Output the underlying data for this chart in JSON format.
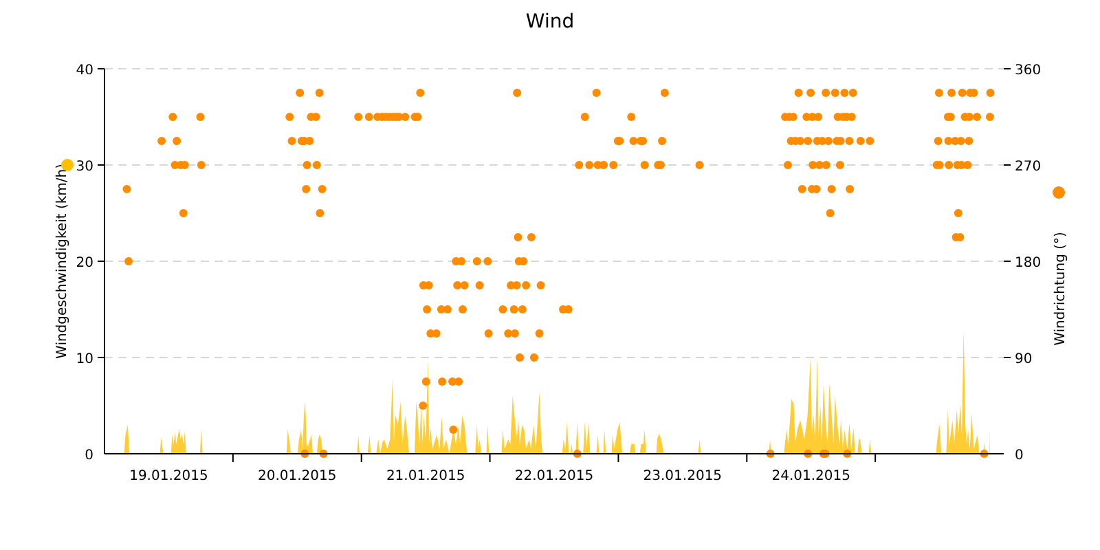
{
  "chart_data": {
    "type": "area",
    "title": "Wind",
    "ylabel": "Windgeschwindigkeit (km/h)",
    "y2label": "Windrichtung (°)",
    "xlim": [
      "2015-01-19T00:00",
      "2015-01-26T00:00"
    ],
    "xticks": [
      {
        "value": "2015-01-19T12:00",
        "label": "19.01.2015"
      },
      {
        "value": "2015-01-20T00:00",
        "label": null
      },
      {
        "value": "2015-01-20T12:00",
        "label": "20.01.2015"
      },
      {
        "value": "2015-01-21T00:00",
        "label": null
      },
      {
        "value": "2015-01-21T12:00",
        "label": "21.01.2015"
      },
      {
        "value": "2015-01-22T00:00",
        "label": null
      },
      {
        "value": "2015-01-22T12:00",
        "label": "22.01.2015"
      },
      {
        "value": "2015-01-23T00:00",
        "label": null
      },
      {
        "value": "2015-01-23T12:00",
        "label": "23.01.2015"
      },
      {
        "value": "2015-01-24T00:00",
        "label": null
      },
      {
        "value": "2015-01-24T12:00",
        "label": "24.01.2015"
      },
      {
        "value": "2015-01-25T00:00",
        "label": null
      }
    ],
    "ylim": [
      0,
      40
    ],
    "yticks": [
      0,
      10,
      20,
      30,
      40
    ],
    "y2lim": [
      0,
      360
    ],
    "y2ticks": [
      0,
      90,
      180,
      270,
      360
    ],
    "grid": "y",
    "series": [
      {
        "color": "#ffc000",
        "x": [
          "2015-01-19T03:40",
          "2015-01-19T03:55",
          "2015-01-19T04:20",
          "2015-01-19T04:40",
          "2015-01-19T10:20",
          "2015-01-19T10:35",
          "2015-01-19T11:00",
          "2015-01-19T12:25",
          "2015-01-19T12:40",
          "2015-01-19T12:55",
          "2015-01-19T13:10",
          "2015-01-19T13:25",
          "2015-01-19T13:45",
          "2015-01-19T14:00",
          "2015-01-19T14:15",
          "2015-01-19T14:30",
          "2015-01-19T14:45",
          "2015-01-19T15:00",
          "2015-01-19T15:15",
          "2015-01-19T17:50",
          "2015-01-19T18:05",
          "2015-01-19T18:20",
          "2015-01-20T10:00",
          "2015-01-20T10:15",
          "2015-01-20T10:30",
          "2015-01-20T10:50",
          "2015-01-20T12:05",
          "2015-01-20T12:20",
          "2015-01-20T12:45",
          "2015-01-20T13:00",
          "2015-01-20T13:15",
          "2015-01-20T13:30",
          "2015-01-20T13:45",
          "2015-01-20T14:00",
          "2015-01-20T14:25",
          "2015-01-20T14:40",
          "2015-01-20T14:55",
          "2015-01-20T15:40",
          "2015-01-20T15:55",
          "2015-01-20T16:10",
          "2015-01-20T16:30",
          "2015-01-20T16:45",
          "2015-01-20T23:10",
          "2015-01-20T23:25",
          "2015-01-20T23:40",
          "2015-01-21T01:10",
          "2015-01-21T01:30",
          "2015-01-21T01:45",
          "2015-01-21T02:45",
          "2015-01-21T03:10",
          "2015-01-21T03:30",
          "2015-01-21T03:55",
          "2015-01-21T04:15",
          "2015-01-21T04:50",
          "2015-01-21T05:20",
          "2015-01-21T05:50",
          "2015-01-21T06:05",
          "2015-01-21T06:20",
          "2015-01-21T06:50",
          "2015-01-21T07:20",
          "2015-01-21T07:40",
          "2015-01-21T08:10",
          "2015-01-21T08:35",
          "2015-01-21T08:55",
          "2015-01-21T09:55",
          "2015-01-21T10:15",
          "2015-01-21T10:30",
          "2015-01-21T10:50",
          "2015-01-21T11:10",
          "2015-01-21T11:25",
          "2015-01-21T11:40",
          "2015-01-21T12:00",
          "2015-01-21T12:15",
          "2015-01-21T12:25",
          "2015-01-21T12:40",
          "2015-01-21T12:50",
          "2015-01-21T13:15",
          "2015-01-21T14:05",
          "2015-01-21T14:35",
          "2015-01-21T15:00",
          "2015-01-21T15:20",
          "2015-01-21T15:50",
          "2015-01-21T16:25",
          "2015-01-21T17:10",
          "2015-01-21T17:40",
          "2015-01-21T18:10",
          "2015-01-21T18:25",
          "2015-01-21T18:50",
          "2015-01-21T19:15",
          "2015-01-21T19:45",
          "2015-01-21T21:15",
          "2015-01-21T21:35",
          "2015-01-21T21:50",
          "2015-01-21T22:05",
          "2015-01-21T22:25",
          "2015-01-21T23:20",
          "2015-01-21T23:35",
          "2015-01-21T23:50",
          "2015-01-22T02:10",
          "2015-01-22T02:25",
          "2015-01-22T02:45",
          "2015-01-22T03:25",
          "2015-01-22T03:50",
          "2015-01-22T04:15",
          "2015-01-22T04:45",
          "2015-01-22T05:00",
          "2015-01-22T05:20",
          "2015-01-22T05:35",
          "2015-01-22T06:00",
          "2015-01-22T06:25",
          "2015-01-22T06:45",
          "2015-01-22T07:20",
          "2015-01-22T07:40",
          "2015-01-22T08:10",
          "2015-01-22T08:35",
          "2015-01-22T09:15",
          "2015-01-22T09:35",
          "2015-01-22T09:50",
          "2015-01-22T13:30",
          "2015-01-22T13:45",
          "2015-01-22T14:05",
          "2015-01-22T14:25",
          "2015-01-22T14:45",
          "2015-01-22T15:00",
          "2015-01-22T15:15",
          "2015-01-22T15:30",
          "2015-01-22T16:00",
          "2015-01-22T16:20",
          "2015-01-22T16:35",
          "2015-01-22T17:25",
          "2015-01-22T17:45",
          "2015-01-22T18:05",
          "2015-01-22T18:25",
          "2015-01-22T18:45",
          "2015-01-22T19:55",
          "2015-01-22T20:10",
          "2015-01-22T20:25",
          "2015-01-22T21:10",
          "2015-01-22T21:25",
          "2015-01-22T21:40",
          "2015-01-22T22:45",
          "2015-01-22T22:55",
          "2015-01-22T23:15",
          "2015-01-22T23:50",
          "2015-01-23T00:15",
          "2015-01-23T00:35",
          "2015-01-23T00:45",
          "2015-01-23T02:05",
          "2015-01-23T02:25",
          "2015-01-23T03:00",
          "2015-01-23T03:15",
          "2015-01-23T04:00",
          "2015-01-23T04:15",
          "2015-01-23T04:40",
          "2015-01-23T04:55",
          "2015-01-23T05:10",
          "2015-01-23T07:05",
          "2015-01-23T07:15",
          "2015-01-23T07:35",
          "2015-01-23T08:00",
          "2015-01-23T08:30",
          "2015-01-23T14:55",
          "2015-01-23T15:10",
          "2015-01-23T15:25",
          "2015-01-24T04:05",
          "2015-01-24T04:20",
          "2015-01-24T04:35",
          "2015-01-24T06:55",
          "2015-01-24T07:25",
          "2015-01-24T07:45",
          "2015-01-24T08:20",
          "2015-01-24T08:45",
          "2015-01-24T09:05",
          "2015-01-24T09:25",
          "2015-01-24T10:00",
          "2015-01-24T10:45",
          "2015-01-24T11:20",
          "2015-01-24T11:55",
          "2015-01-24T12:10",
          "2015-01-24T12:30",
          "2015-01-24T12:45",
          "2015-01-24T13:10",
          "2015-01-24T13:25",
          "2015-01-24T13:45",
          "2015-01-24T14:00",
          "2015-01-24T14:20",
          "2015-01-24T14:45",
          "2015-01-24T15:05",
          "2015-01-24T15:25",
          "2015-01-24T15:55",
          "2015-01-24T16:10",
          "2015-01-24T16:30",
          "2015-01-24T16:55",
          "2015-01-24T17:20",
          "2015-01-24T17:35",
          "2015-01-24T17:55",
          "2015-01-24T18:15",
          "2015-01-24T18:45",
          "2015-01-24T19:10",
          "2015-01-24T19:30",
          "2015-01-24T19:55",
          "2015-01-24T20:15",
          "2015-01-24T20:40",
          "2015-01-24T20:55",
          "2015-01-24T21:10",
          "2015-01-24T21:30",
          "2015-01-24T22:45",
          "2015-01-24T23:00",
          "2015-01-24T23:15",
          "2015-01-25T11:20",
          "2015-01-25T11:35",
          "2015-01-25T12:00",
          "2015-01-25T12:20",
          "2015-01-25T13:15",
          "2015-01-25T13:35",
          "2015-01-25T13:50",
          "2015-01-25T14:25",
          "2015-01-25T14:45",
          "2015-01-25T15:15",
          "2015-01-25T15:30",
          "2015-01-25T15:55",
          "2015-01-25T16:10",
          "2015-01-25T16:30",
          "2015-01-25T16:50",
          "2015-01-25T17:05",
          "2015-01-25T17:20",
          "2015-01-25T17:40",
          "2015-01-25T18:00",
          "2015-01-25T18:25",
          "2015-01-25T19:05",
          "2015-01-25T19:25",
          "2015-01-25T20:10",
          "2015-01-25T20:20",
          "2015-01-25T20:35",
          "2015-01-25T21:20",
          "2015-01-25T21:25"
        ],
        "values": [
          0,
          2,
          3,
          0,
          0,
          1.7,
          0,
          0,
          2,
          1,
          2.2,
          1,
          2,
          2.5,
          1.5,
          2,
          1,
          2.3,
          0,
          0,
          2.5,
          0,
          0,
          2.5,
          1.5,
          0,
          0,
          1.5,
          2.5,
          0.5,
          4,
          5.5,
          1,
          0.8,
          1.5,
          2,
          0,
          0,
          1.5,
          2,
          1.5,
          0,
          0,
          1.9,
          0,
          0,
          1.9,
          0,
          0,
          1.5,
          0,
          1.2,
          1.5,
          0.5,
          1.5,
          7.9,
          1,
          4,
          3.1,
          5.4,
          1,
          4,
          2,
          0,
          0,
          5.4,
          4,
          1,
          5,
          1,
          4,
          1.5,
          6,
          9.8,
          1,
          3,
          0.5,
          2,
          0.5,
          3.8,
          0.5,
          1.5,
          0,
          2.5,
          1,
          3,
          1,
          4,
          3,
          0,
          0,
          3,
          0.5,
          1.5,
          0,
          0,
          3,
          0,
          0,
          2.5,
          0.5,
          1.5,
          1,
          6,
          3,
          1.5,
          3.5,
          1,
          3,
          2.5,
          0.5,
          1.5,
          0.5,
          3,
          0.5,
          6.4,
          1.5,
          0,
          0,
          1.5,
          0.5,
          3.3,
          0,
          0,
          1,
          0,
          0,
          3.3,
          0,
          0,
          3.3,
          0.5,
          3.3,
          0,
          0,
          2,
          0,
          0,
          2.5,
          0,
          0,
          2,
          0.5,
          2.5,
          3.3,
          1,
          0,
          0,
          1,
          1,
          0,
          0,
          1,
          1,
          2.5,
          0,
          0,
          1.5,
          2.1,
          1.5,
          0,
          0,
          1.5,
          0,
          0,
          1.4,
          0,
          0,
          2.5,
          1,
          5.7,
          5.2,
          1,
          2.5,
          3.5,
          1.5,
          3.9,
          10.1,
          2,
          4,
          1,
          10.1,
          2,
          5,
          1,
          7.3,
          3,
          1,
          7.3,
          3.5,
          1,
          6,
          3,
          1,
          3.7,
          0.5,
          2.5,
          0.5,
          3.2,
          0.5,
          2.7,
          0,
          0,
          1.5,
          1.5,
          0,
          0,
          1.5,
          0,
          0,
          1.5,
          3.1,
          0,
          0,
          4.7,
          1,
          3.5,
          1,
          4.7,
          2,
          5.2,
          2,
          12.9,
          3,
          1,
          2.5,
          0.5,
          4.2,
          0.5,
          2,
          0,
          0,
          1.2,
          0,
          0,
          2.7
        ]
      },
      {
        "type": "scatter",
        "axis": "y2",
        "marker": "circle",
        "color": "#ff8c00",
        "x": [
          "2015-01-19T04:10",
          "2015-01-19T04:30",
          "2015-01-19T10:40",
          "2015-01-19T13:30",
          "2015-01-19T12:45",
          "2015-01-19T13:10",
          "2015-01-19T14:15",
          "2015-01-19T15:00",
          "2015-01-19T14:45",
          "2015-01-19T17:55",
          "2015-01-19T18:05",
          "2015-01-20T10:35",
          "2015-01-20T11:00",
          "2015-01-20T12:30",
          "2015-01-20T12:50",
          "2015-01-20T13:20",
          "2015-01-20T14:20",
          "2015-01-20T13:50",
          "2015-01-20T13:40",
          "2015-01-20T14:35",
          "2015-01-20T15:30",
          "2015-01-20T16:10",
          "2015-01-20T15:40",
          "2015-01-20T16:40",
          "2015-01-20T16:15",
          "2015-01-20T13:25",
          "2015-01-20T16:55",
          "2015-01-20T23:25",
          "2015-01-21T01:25",
          "2015-01-21T03:00",
          "2015-01-21T03:50",
          "2015-01-21T04:30",
          "2015-01-21T05:10",
          "2015-01-21T05:50",
          "2015-01-21T06:25",
          "2015-01-21T07:00",
          "2015-01-21T08:10",
          "2015-01-21T10:00",
          "2015-01-21T10:30",
          "2015-01-21T11:00",
          "2015-01-22T05:05",
          "2015-01-22T19:55",
          "2015-01-22T17:45",
          "2015-01-23T02:25",
          "2015-01-22T23:55",
          "2015-01-23T00:15",
          "2015-01-22T16:40",
          "2015-01-22T18:35",
          "2015-01-22T20:10",
          "2015-01-22T21:15",
          "2015-01-22T23:05",
          "2015-01-22T05:15",
          "2015-01-22T07:45",
          "2015-01-21T17:40",
          "2015-01-21T18:40",
          "2015-01-21T21:35",
          "2015-01-21T23:35",
          "2015-01-22T05:25",
          "2015-01-22T06:15",
          "2015-01-21T11:35",
          "2015-01-21T12:35",
          "2015-01-21T17:55",
          "2015-01-21T19:15",
          "2015-01-21T22:05",
          "2015-01-22T03:55",
          "2015-01-22T05:00",
          "2015-01-22T06:45",
          "2015-01-22T09:30",
          "2015-01-21T12:15",
          "2015-01-21T14:55",
          "2015-01-21T16:05",
          "2015-01-21T18:55",
          "2015-01-22T02:25",
          "2015-01-22T04:30",
          "2015-01-22T06:05",
          "2015-01-22T13:40",
          "2015-01-22T14:40",
          "2015-01-21T12:55",
          "2015-01-21T14:00",
          "2015-01-21T23:45",
          "2015-01-22T03:25",
          "2015-01-22T04:40",
          "2015-01-22T09:15",
          "2015-01-22T05:35",
          "2015-01-22T08:15",
          "2015-01-21T12:05",
          "2015-01-21T15:05",
          "2015-01-21T17:00",
          "2015-01-21T18:10",
          "2015-01-21T11:30",
          "2015-01-21T17:10",
          "2015-01-22T16:20",
          "2015-01-23T08:40",
          "2015-01-24T09:40",
          "2015-01-24T11:55",
          "2015-01-24T14:45",
          "2015-01-24T16:30",
          "2015-01-24T18:15",
          "2015-01-24T19:50",
          "2015-01-25T11:55",
          "2015-01-25T14:15",
          "2015-01-25T16:15",
          "2015-01-25T17:45",
          "2015-01-25T18:25",
          "2015-01-25T21:30",
          "2015-01-24T07:10",
          "2015-01-24T07:55",
          "2015-01-24T08:40",
          "2015-01-24T11:10",
          "2015-01-24T12:15",
          "2015-01-24T13:20",
          "2015-01-24T17:00",
          "2015-01-24T18:00",
          "2015-01-24T18:40",
          "2015-01-24T19:35",
          "2015-01-25T13:35",
          "2015-01-25T14:05",
          "2015-01-25T16:45",
          "2015-01-25T17:35",
          "2015-01-25T19:00",
          "2015-01-25T21:25",
          "2015-01-23T02:50",
          "2015-01-23T04:10",
          "2015-01-23T04:35",
          "2015-01-23T08:10",
          "2015-01-24T08:15",
          "2015-01-24T09:05",
          "2015-01-24T10:00",
          "2015-01-24T11:25",
          "2015-01-24T13:10",
          "2015-01-24T14:05",
          "2015-01-24T15:15",
          "2015-01-24T16:50",
          "2015-01-24T17:30",
          "2015-01-24T19:10",
          "2015-01-24T21:15",
          "2015-01-24T23:00",
          "2015-01-25T11:45",
          "2015-01-25T13:40",
          "2015-01-25T14:55",
          "2015-01-25T16:00",
          "2015-01-25T17:30",
          "2015-01-23T04:55",
          "2015-01-23T07:25",
          "2015-01-23T07:55",
          "2015-01-23T15:10",
          "2015-01-24T07:40",
          "2015-01-24T12:20",
          "2015-01-24T13:35",
          "2015-01-24T14:50",
          "2015-01-24T17:25",
          "2015-01-25T11:30",
          "2015-01-25T12:00",
          "2015-01-25T13:45",
          "2015-01-25T15:20",
          "2015-01-25T16:05",
          "2015-01-25T17:15",
          "2015-01-24T10:20",
          "2015-01-24T12:10",
          "2015-01-24T13:00",
          "2015-01-24T15:50",
          "2015-01-24T19:15",
          "2015-01-24T15:35",
          "2015-01-25T15:30",
          "2015-01-25T15:05",
          "2015-01-25T15:50",
          "2015-01-24T04:25",
          "2015-01-24T11:25",
          "2015-01-24T14:20",
          "2015-01-24T14:40",
          "2015-01-24T18:45",
          "2015-01-25T20:20"
        ],
        "values": [
          247.5,
          180,
          292.5,
          292.5,
          315,
          270,
          270,
          270,
          225,
          315,
          270,
          315,
          292.5,
          337.5,
          292.5,
          292.5,
          292.5,
          270,
          247.5,
          315,
          315,
          337.5,
          270,
          247.5,
          225,
          0,
          0,
          315,
          315,
          315,
          315,
          315,
          315,
          315,
          315,
          315,
          315,
          315,
          315,
          337.5,
          337.5,
          337.5,
          315,
          315,
          292.5,
          292.5,
          270,
          270,
          270,
          270,
          270,
          202.5,
          202.5,
          180,
          180,
          180,
          180,
          180,
          180,
          157.5,
          157.5,
          157.5,
          157.5,
          157.5,
          157.5,
          157.5,
          157.5,
          157.5,
          135,
          135,
          135,
          135,
          135,
          135,
          135,
          135,
          135,
          112.5,
          112.5,
          112.5,
          112.5,
          112.5,
          112.5,
          90,
          90,
          67.5,
          67.5,
          67.5,
          67.5,
          45,
          22.5,
          0,
          337.5,
          337.5,
          337.5,
          337.5,
          337.5,
          337.5,
          337.5,
          337.5,
          337.5,
          337.5,
          337.5,
          337.5,
          337.5,
          315,
          315,
          315,
          315,
          315,
          315,
          315,
          315,
          315,
          315,
          315,
          315,
          315,
          315,
          315,
          315,
          292.5,
          292.5,
          292.5,
          292.5,
          292.5,
          292.5,
          292.5,
          292.5,
          292.5,
          292.5,
          292.5,
          292.5,
          292.5,
          292.5,
          292.5,
          292.5,
          292.5,
          292.5,
          292.5,
          292.5,
          292.5,
          270,
          270,
          270,
          270,
          270,
          270,
          270,
          270,
          270,
          270,
          270,
          270,
          270,
          270,
          270,
          247.5,
          247.5,
          247.5,
          247.5,
          247.5,
          225,
          225,
          202.5,
          202.5,
          0,
          0,
          0,
          0,
          0,
          0
        ]
      }
    ]
  }
}
